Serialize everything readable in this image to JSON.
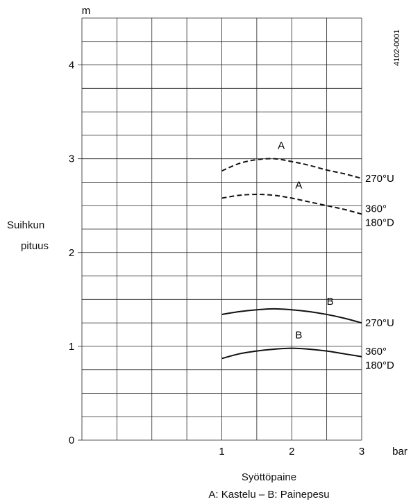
{
  "chart_data": {
    "type": "line",
    "title": "",
    "xlabel": "Syöttöpaine",
    "xunit": "bar",
    "ylabel_line1": "Suihkun",
    "ylabel_line2": "pituus",
    "yunit": "m",
    "xlim": [
      -1,
      3
    ],
    "ylim": [
      0,
      4.5
    ],
    "x_ticks": [
      "1",
      "2",
      "3"
    ],
    "y_ticks": [
      "0",
      "1",
      "2",
      "3",
      "4"
    ],
    "grid": true,
    "figure_code": "4102-0001",
    "legend_text": "A: Kastelu – B: Painepesu",
    "series": [
      {
        "label": "A",
        "end_label": "270°U",
        "style": "dashed",
        "x": [
          1.0,
          1.25,
          1.5,
          1.75,
          2.0,
          2.25,
          2.5,
          2.75,
          3.0
        ],
        "y": [
          2.87,
          2.95,
          2.99,
          3.0,
          2.97,
          2.93,
          2.88,
          2.84,
          2.79
        ]
      },
      {
        "label": "A",
        "end_label": "360°\n180°D",
        "style": "dashed",
        "x": [
          1.0,
          1.25,
          1.5,
          1.75,
          2.0,
          2.25,
          2.5,
          2.75,
          3.0
        ],
        "y": [
          2.58,
          2.61,
          2.62,
          2.61,
          2.58,
          2.54,
          2.5,
          2.46,
          2.41
        ]
      },
      {
        "label": "B",
        "end_label": "270°U",
        "style": "solid",
        "x": [
          1.0,
          1.25,
          1.5,
          1.75,
          2.0,
          2.25,
          2.5,
          2.75,
          3.0
        ],
        "y": [
          1.34,
          1.37,
          1.39,
          1.4,
          1.39,
          1.37,
          1.34,
          1.3,
          1.25
        ]
      },
      {
        "label": "B",
        "end_label": "360°\n180°D",
        "style": "solid",
        "x": [
          1.0,
          1.25,
          1.5,
          1.75,
          2.0,
          2.25,
          2.5,
          2.75,
          3.0
        ],
        "y": [
          0.87,
          0.92,
          0.95,
          0.97,
          0.98,
          0.97,
          0.95,
          0.92,
          0.89
        ]
      }
    ]
  }
}
